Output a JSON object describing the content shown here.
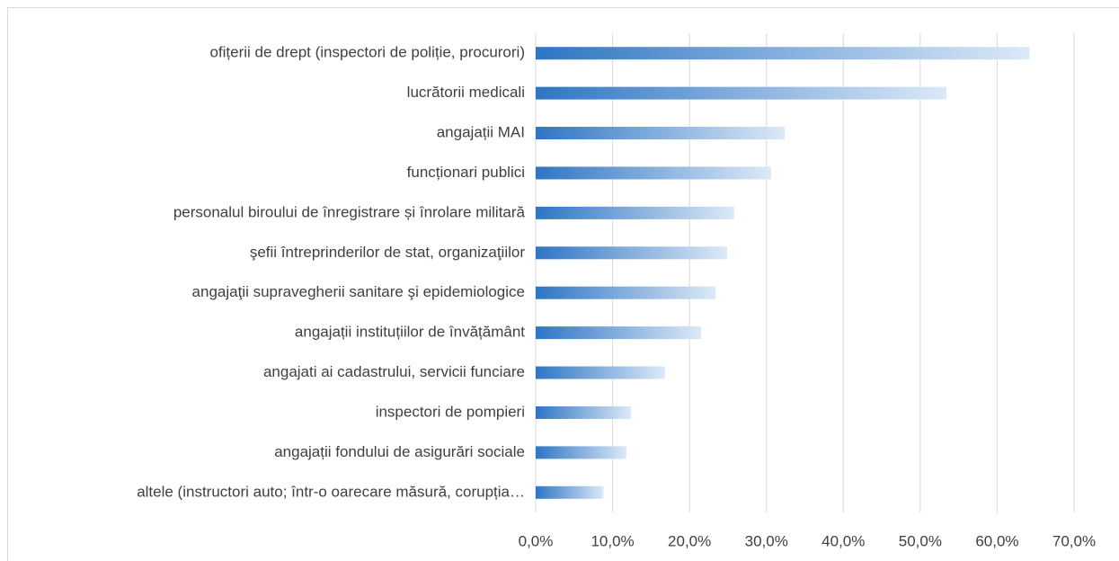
{
  "chart_data": {
    "type": "barh",
    "categories": [
      "ofițerii de drept (inspectori de poliție, procurori)",
      "lucrătorii medicali",
      "angajații MAI",
      "funcționari publici",
      "personalul biroului de înregistrare și înrolare militară",
      "şefii întreprinderilor de stat, organizaţiilor",
      "angajaţii supravegherii sanitare şi epidemiologice",
      "angajații instituțiilor de învățământ",
      "angajati ai cadastrului, servicii funciare",
      "inspectori de pompieri",
      "angajații fondului de asigurări sociale",
      "altele (instructori auto; într-o oarecare măsură, corupția…"
    ],
    "values": [
      64.2,
      53.4,
      32.4,
      30.6,
      25.8,
      24.9,
      23.4,
      21.5,
      16.8,
      12.4,
      11.8,
      8.8
    ],
    "color": "#2e75c4",
    "xlim": [
      0,
      70
    ],
    "xticks": [
      {
        "value": 0,
        "label": "0,0%"
      },
      {
        "value": 10,
        "label": "10,0%"
      },
      {
        "value": 20,
        "label": "20,0%"
      },
      {
        "value": 30,
        "label": "30,0%"
      },
      {
        "value": 40,
        "label": "40,0%"
      },
      {
        "value": 50,
        "label": "50,0%"
      },
      {
        "value": 60,
        "label": "60,0%"
      },
      {
        "value": 70,
        "label": "70,0%"
      }
    ],
    "grid": true
  }
}
